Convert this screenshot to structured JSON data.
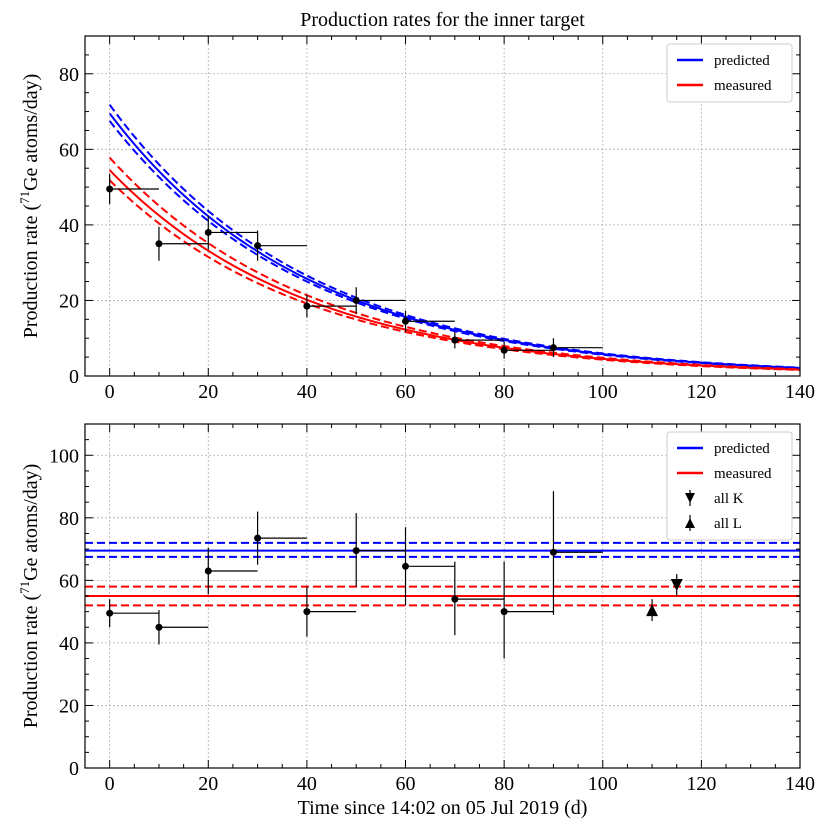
{
  "chart_data": [
    {
      "id": "top",
      "type": "scatter",
      "title": "Production rates for the inner target",
      "xlabel": "",
      "ylabel": "Production rate (",
      "ylabel_sup": "71",
      "ylabel_tail": "Ge atoms/day)",
      "xlim": [
        -5,
        140
      ],
      "ylim": [
        0,
        90
      ],
      "xticks": [
        0,
        20,
        40,
        60,
        80,
        100,
        120,
        140
      ],
      "yticks": [
        0,
        20,
        40,
        60,
        80
      ],
      "xtick_labels": [
        "0",
        "20",
        "40",
        "60",
        "80",
        "100",
        "120",
        "140"
      ],
      "ytick_labels": [
        "0",
        "20",
        "40",
        "60",
        "80"
      ],
      "grid": true,
      "legend_position": "top-right",
      "half_life_days": 27.9,
      "curves": [
        {
          "name": "predicted",
          "color": "#0000ff",
          "center": 69.5,
          "upper": 71.8,
          "lower": 67.5
        },
        {
          "name": "measured",
          "color": "#ff0000",
          "center": 54.5,
          "upper": 57.8,
          "lower": 51.8
        }
      ],
      "points": [
        {
          "x": 0,
          "y": 49.5,
          "xerr": 10,
          "yerr": 4
        },
        {
          "x": 10,
          "y": 35,
          "xerr": 10,
          "yerr": 4.5
        },
        {
          "x": 20,
          "y": 38,
          "xerr": 10,
          "yerr": 4.5
        },
        {
          "x": 30,
          "y": 34.5,
          "xerr": 10,
          "yerr": 4
        },
        {
          "x": 40,
          "y": 18.5,
          "xerr": 10,
          "yerr": 3
        },
        {
          "x": 50,
          "y": 20,
          "xerr": 10,
          "yerr": 3.5
        },
        {
          "x": 60,
          "y": 14.5,
          "xerr": 10,
          "yerr": 2.8
        },
        {
          "x": 70,
          "y": 9.5,
          "xerr": 10,
          "yerr": 2.2
        },
        {
          "x": 80,
          "y": 6.8,
          "xerr": 10,
          "yerr": 2.2
        },
        {
          "x": 90,
          "y": 7.5,
          "xerr": 10,
          "yerr": 2.5
        }
      ]
    },
    {
      "id": "bottom",
      "type": "scatter",
      "title": "",
      "xlabel": "Time since 14:02 on 05 Jul 2019 (d)",
      "ylabel": "Production rate (",
      "ylabel_sup": "71",
      "ylabel_tail": "Ge atoms/day)",
      "xlim": [
        -5,
        140
      ],
      "ylim": [
        0,
        110
      ],
      "xticks": [
        0,
        20,
        40,
        60,
        80,
        100,
        120,
        140
      ],
      "yticks": [
        0,
        20,
        40,
        60,
        80,
        100
      ],
      "xtick_labels": [
        "0",
        "20",
        "40",
        "60",
        "80",
        "100",
        "120",
        "140"
      ],
      "ytick_labels": [
        "0",
        "20",
        "40",
        "60",
        "80",
        "100"
      ],
      "grid": true,
      "legend_position": "top-right",
      "hlines": [
        {
          "name": "predicted",
          "color": "#0000ff",
          "center": 69.5,
          "upper": 72,
          "lower": 67.5
        },
        {
          "name": "measured",
          "color": "#ff0000",
          "center": 55,
          "upper": 58,
          "lower": 52
        }
      ],
      "points": [
        {
          "x": 0,
          "y": 49.5,
          "xerr": 10,
          "yerr_low": 4.5,
          "yerr_high": 4.5
        },
        {
          "x": 10,
          "y": 45,
          "xerr": 10,
          "yerr_low": 5.5,
          "yerr_high": 5.5
        },
        {
          "x": 20,
          "y": 63,
          "xerr": 10,
          "yerr_low": 7.5,
          "yerr_high": 7.5
        },
        {
          "x": 30,
          "y": 73.5,
          "xerr": 10,
          "yerr_low": 8.5,
          "yerr_high": 8.5
        },
        {
          "x": 40,
          "y": 50,
          "xerr": 10,
          "yerr_low": 8,
          "yerr_high": 8
        },
        {
          "x": 50,
          "y": 69.5,
          "xerr": 10,
          "yerr_low": 11.5,
          "yerr_high": 12
        },
        {
          "x": 60,
          "y": 64.5,
          "xerr": 10,
          "yerr_low": 12.5,
          "yerr_high": 12.5
        },
        {
          "x": 70,
          "y": 54,
          "xerr": 10,
          "yerr_low": 11.5,
          "yerr_high": 12
        },
        {
          "x": 80,
          "y": 50,
          "xerr": 10,
          "yerr_low": 15,
          "yerr_high": 16
        },
        {
          "x": 90,
          "y": 69,
          "xerr": 10,
          "yerr_low": 20,
          "yerr_high": 19.5
        }
      ],
      "markers": [
        {
          "name": "all K",
          "x": 115,
          "y": 58.5,
          "yerr": 3.5,
          "shape": "triangle-down"
        },
        {
          "name": "all L",
          "x": 110,
          "y": 50.5,
          "yerr": 3.5,
          "shape": "triangle-up"
        }
      ]
    }
  ]
}
